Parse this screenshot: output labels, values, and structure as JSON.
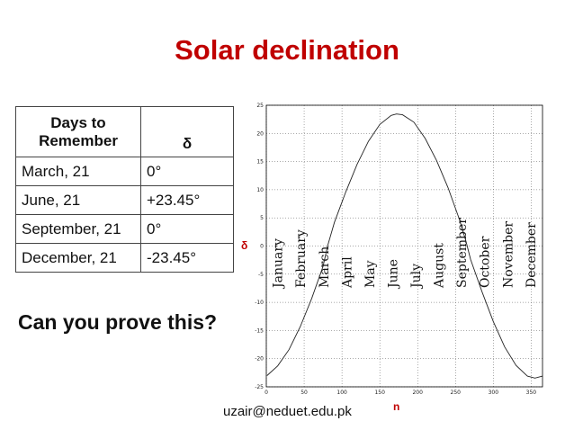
{
  "slide": {
    "title": "Solar declination",
    "question": "Can you prove this?",
    "email": "uzair@neduet.edu.pk"
  },
  "table": {
    "headers": [
      "Days to Remember",
      "δ"
    ],
    "rows": [
      [
        "March, 21",
        "0°"
      ],
      [
        "June, 21",
        "+23.45°"
      ],
      [
        "September, 21",
        "0°"
      ],
      [
        "December, 21",
        "-23.45°"
      ]
    ]
  },
  "chart_data": {
    "type": "line",
    "xlabel": "n",
    "ylabel": "δ",
    "xlim": [
      0,
      365
    ],
    "ylim": [
      -25,
      25
    ],
    "xticks": [
      0,
      50,
      100,
      150,
      200,
      250,
      300,
      350
    ],
    "yticks": [
      25,
      20,
      15,
      10,
      5,
      0,
      -5,
      -10,
      -15,
      -20,
      -25
    ],
    "grid": true,
    "months": [
      "January",
      "February",
      "March",
      "April",
      "May",
      "June",
      "July",
      "August",
      "September",
      "October",
      "November",
      "December"
    ],
    "series": [
      {
        "x": [
          1,
          15,
          30,
          45,
          60,
          75,
          81,
          90,
          105,
          120,
          135,
          150,
          165,
          172,
          180,
          195,
          210,
          225,
          240,
          255,
          264,
          270,
          285,
          300,
          315,
          330,
          345,
          355,
          365
        ],
        "values": [
          -23.0,
          -21.3,
          -18.4,
          -14.3,
          -9.3,
          -3.6,
          0.0,
          4.2,
          9.6,
          14.5,
          18.6,
          21.6,
          23.2,
          23.45,
          23.3,
          22.0,
          19.1,
          15.2,
          10.4,
          4.8,
          0.8,
          -2.4,
          -8.1,
          -13.4,
          -17.9,
          -21.2,
          -23.1,
          -23.45,
          -23.1
        ]
      }
    ]
  }
}
